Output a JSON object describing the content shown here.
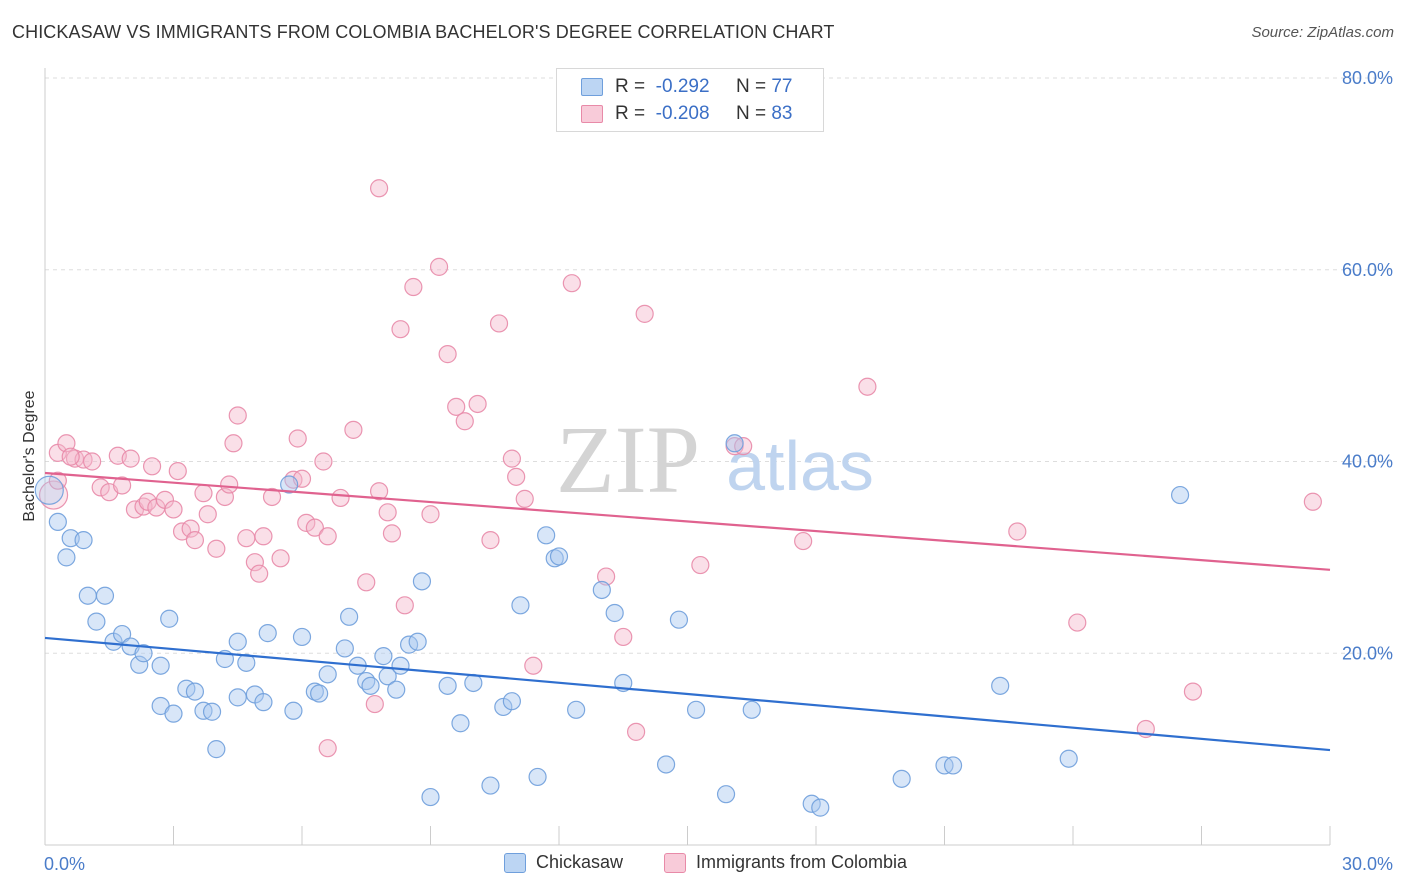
{
  "header": {
    "title": "CHICKASAW VS IMMIGRANTS FROM COLOMBIA BACHELOR'S DEGREE CORRELATION CHART",
    "source": "Source: ZipAtlas.com"
  },
  "legend": {
    "rows": [
      {
        "r_label": "R =",
        "r_value": "-0.292",
        "n_label": "N =",
        "n_value": "77"
      },
      {
        "r_label": "R =",
        "r_value": "-0.208",
        "n_label": "N =",
        "n_value": "83"
      }
    ]
  },
  "bottom_legend": [
    "Chickasaw",
    "Immigrants from Colombia"
  ],
  "watermark": {
    "zip": "ZIP",
    "atlas": "atlas"
  },
  "colors": {
    "blue_fill": "#a9c8ef",
    "blue_stroke": "#6f9fdc",
    "blue_line": "#2f6fcf",
    "pink_fill": "#f5b9cc",
    "pink_stroke": "#e88aa8",
    "pink_line": "#e0628f",
    "grid": "#dddddd",
    "axis_text": "#4a7cc9"
  },
  "chart_data": {
    "type": "scatter",
    "ylabel": "Bachelor's Degree",
    "xlim": [
      0,
      30
    ],
    "ylim": [
      0,
      80
    ],
    "x_tick_labels": [
      "0.0%",
      "30.0%"
    ],
    "y_ticks": [
      20,
      40,
      60,
      80
    ],
    "y_tick_labels": [
      "20.0%",
      "40.0%",
      "60.0%",
      "80.0%"
    ],
    "grid": true,
    "legend_position": "top-center",
    "series": [
      {
        "name": "Chickasaw",
        "color": "#a9c8ef",
        "trend": {
          "x": [
            0,
            30
          ],
          "y": [
            21.6,
            9.9
          ]
        },
        "points": [
          [
            0.1,
            37.0
          ],
          [
            0.3,
            33.7
          ],
          [
            0.5,
            30.0
          ],
          [
            0.6,
            32.0
          ],
          [
            0.9,
            31.8
          ],
          [
            1.0,
            26.0
          ],
          [
            1.2,
            23.3
          ],
          [
            1.4,
            26.0
          ],
          [
            1.6,
            21.2
          ],
          [
            1.8,
            22.0
          ],
          [
            2.0,
            20.7
          ],
          [
            2.2,
            18.8
          ],
          [
            2.3,
            20.0
          ],
          [
            2.7,
            14.5
          ],
          [
            2.7,
            18.7
          ],
          [
            2.9,
            23.6
          ],
          [
            3.0,
            13.7
          ],
          [
            3.3,
            16.3
          ],
          [
            3.5,
            16.0
          ],
          [
            3.7,
            14.0
          ],
          [
            3.9,
            13.9
          ],
          [
            4.0,
            10.0
          ],
          [
            4.2,
            19.4
          ],
          [
            4.5,
            15.4
          ],
          [
            4.5,
            21.2
          ],
          [
            4.7,
            19.0
          ],
          [
            4.9,
            15.7
          ],
          [
            5.1,
            14.9
          ],
          [
            5.2,
            22.1
          ],
          [
            5.7,
            37.6
          ],
          [
            5.8,
            14.0
          ],
          [
            6.0,
            21.7
          ],
          [
            6.3,
            16.0
          ],
          [
            6.4,
            15.8
          ],
          [
            6.6,
            17.8
          ],
          [
            7.0,
            20.5
          ],
          [
            7.1,
            23.8
          ],
          [
            7.3,
            18.7
          ],
          [
            7.5,
            17.1
          ],
          [
            7.6,
            16.6
          ],
          [
            7.9,
            19.7
          ],
          [
            8.0,
            17.6
          ],
          [
            8.2,
            16.2
          ],
          [
            8.3,
            18.7
          ],
          [
            8.5,
            20.9
          ],
          [
            8.7,
            21.2
          ],
          [
            8.8,
            27.5
          ],
          [
            9.0,
            5.0
          ],
          [
            9.4,
            16.6
          ],
          [
            9.7,
            12.7
          ],
          [
            10.0,
            16.9
          ],
          [
            10.4,
            6.2
          ],
          [
            10.7,
            14.4
          ],
          [
            10.9,
            15.0
          ],
          [
            11.1,
            25.0
          ],
          [
            11.5,
            7.1
          ],
          [
            11.7,
            32.3
          ],
          [
            11.9,
            29.9
          ],
          [
            12.0,
            30.1
          ],
          [
            12.4,
            14.1
          ],
          [
            13.0,
            26.6
          ],
          [
            13.3,
            24.2
          ],
          [
            13.5,
            16.9
          ],
          [
            14.5,
            8.4
          ],
          [
            14.8,
            23.5
          ],
          [
            15.2,
            14.1
          ],
          [
            15.9,
            5.3
          ],
          [
            16.1,
            41.9
          ],
          [
            16.5,
            14.1
          ],
          [
            17.9,
            4.3
          ],
          [
            18.1,
            3.9
          ],
          [
            20.0,
            6.9
          ],
          [
            21.0,
            8.3
          ],
          [
            21.2,
            8.3
          ],
          [
            22.3,
            16.6
          ],
          [
            23.9,
            9.0
          ],
          [
            26.5,
            36.5
          ]
        ]
      },
      {
        "name": "Immigrants from Colombia",
        "color": "#f5b9cc",
        "trend": {
          "x": [
            0,
            30
          ],
          "y": [
            38.8,
            28.7
          ]
        },
        "points": [
          [
            0.2,
            36.5
          ],
          [
            0.3,
            40.9
          ],
          [
            0.5,
            41.9
          ],
          [
            0.7,
            40.3
          ],
          [
            0.9,
            40.2
          ],
          [
            1.1,
            40.0
          ],
          [
            1.3,
            37.3
          ],
          [
            1.5,
            36.8
          ],
          [
            1.7,
            40.6
          ],
          [
            1.8,
            37.5
          ],
          [
            2.0,
            40.3
          ],
          [
            2.1,
            35.0
          ],
          [
            2.3,
            35.3
          ],
          [
            2.4,
            35.8
          ],
          [
            2.5,
            39.5
          ],
          [
            2.6,
            35.2
          ],
          [
            2.8,
            36.0
          ],
          [
            3.0,
            35.0
          ],
          [
            3.1,
            39.0
          ],
          [
            3.2,
            32.7
          ],
          [
            3.4,
            33.0
          ],
          [
            3.5,
            31.8
          ],
          [
            3.7,
            36.7
          ],
          [
            3.8,
            34.5
          ],
          [
            4.0,
            30.9
          ],
          [
            4.2,
            36.3
          ],
          [
            4.3,
            37.6
          ],
          [
            4.4,
            41.9
          ],
          [
            4.5,
            44.8
          ],
          [
            4.7,
            32.0
          ],
          [
            4.9,
            29.5
          ],
          [
            5.0,
            28.3
          ],
          [
            5.1,
            32.2
          ],
          [
            5.3,
            36.3
          ],
          [
            5.5,
            29.9
          ],
          [
            5.8,
            38.1
          ],
          [
            5.9,
            42.4
          ],
          [
            6.0,
            38.2
          ],
          [
            6.1,
            33.6
          ],
          [
            6.3,
            33.1
          ],
          [
            6.5,
            40.0
          ],
          [
            6.6,
            32.2
          ],
          [
            6.6,
            10.1
          ],
          [
            6.9,
            36.2
          ],
          [
            7.2,
            43.3
          ],
          [
            7.5,
            27.4
          ],
          [
            7.7,
            14.7
          ],
          [
            7.8,
            36.9
          ],
          [
            8.0,
            34.7
          ],
          [
            8.1,
            32.5
          ],
          [
            8.3,
            53.8
          ],
          [
            8.4,
            25.0
          ],
          [
            8.6,
            58.2
          ],
          [
            9.0,
            34.5
          ],
          [
            9.2,
            60.3
          ],
          [
            9.4,
            51.2
          ],
          [
            9.6,
            45.7
          ],
          [
            9.8,
            44.2
          ],
          [
            10.1,
            46.0
          ],
          [
            10.4,
            31.8
          ],
          [
            10.6,
            54.4
          ],
          [
            10.9,
            40.3
          ],
          [
            11.0,
            38.4
          ],
          [
            11.2,
            36.1
          ],
          [
            11.4,
            18.7
          ],
          [
            12.3,
            58.6
          ],
          [
            13.1,
            28.0
          ],
          [
            13.5,
            21.7
          ],
          [
            13.8,
            11.8
          ],
          [
            14.0,
            55.4
          ],
          [
            15.3,
            29.2
          ],
          [
            16.1,
            41.6
          ],
          [
            16.3,
            41.6
          ],
          [
            17.7,
            31.7
          ],
          [
            19.2,
            47.8
          ],
          [
            22.7,
            32.7
          ],
          [
            24.1,
            23.2
          ],
          [
            25.7,
            12.1
          ],
          [
            26.8,
            16.0
          ],
          [
            29.6,
            35.8
          ],
          [
            0.3,
            38.0
          ],
          [
            0.6,
            40.5
          ],
          [
            7.8,
            68.5
          ]
        ]
      }
    ]
  }
}
